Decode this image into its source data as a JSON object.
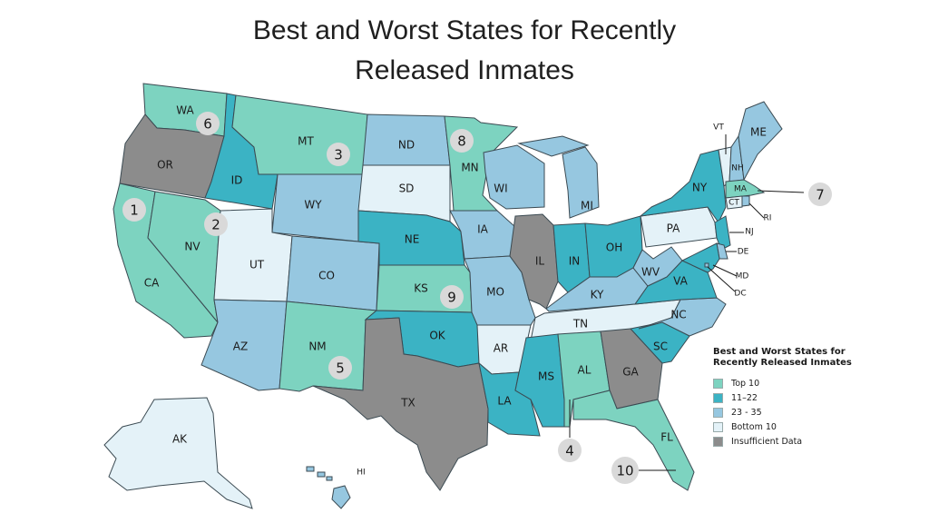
{
  "title": {
    "line1": "Best and Worst States for Recently",
    "line2": "Released Inmates"
  },
  "legend": {
    "title_line1": "Best and Worst States for",
    "title_line2": "Recently Released Inmates",
    "items": [
      {
        "label": "Top 10",
        "color": "#7dd3c0"
      },
      {
        "label": "11–22",
        "color": "#3bb3c4"
      },
      {
        "label": "23 - 35",
        "color": "#96c7e0"
      },
      {
        "label": "Bottom 10",
        "color": "#e4f2f8"
      },
      {
        "label": "Insufficient Data",
        "color": "#8c8c8c"
      }
    ]
  },
  "categories": {
    "top10": "#7dd3c0",
    "mid1": "#3bb3c4",
    "mid2": "#96c7e0",
    "bottom10": "#e4f2f8",
    "nodata": "#8c8c8c"
  },
  "states": [
    {
      "code": "WA",
      "category": "top10"
    },
    {
      "code": "OR",
      "category": "nodata"
    },
    {
      "code": "CA",
      "category": "top10"
    },
    {
      "code": "NV",
      "category": "top10"
    },
    {
      "code": "ID",
      "category": "mid1"
    },
    {
      "code": "MT",
      "category": "top10"
    },
    {
      "code": "WY",
      "category": "mid2"
    },
    {
      "code": "UT",
      "category": "bottom10"
    },
    {
      "code": "CO",
      "category": "mid2"
    },
    {
      "code": "AZ",
      "category": "mid2"
    },
    {
      "code": "NM",
      "category": "top10"
    },
    {
      "code": "ND",
      "category": "mid2"
    },
    {
      "code": "SD",
      "category": "bottom10"
    },
    {
      "code": "NE",
      "category": "mid1"
    },
    {
      "code": "KS",
      "category": "top10"
    },
    {
      "code": "OK",
      "category": "mid1"
    },
    {
      "code": "TX",
      "category": "nodata"
    },
    {
      "code": "MN",
      "category": "top10"
    },
    {
      "code": "IA",
      "category": "mid2"
    },
    {
      "code": "MO",
      "category": "mid2"
    },
    {
      "code": "AR",
      "category": "bottom10"
    },
    {
      "code": "LA",
      "category": "mid1"
    },
    {
      "code": "WI",
      "category": "mid2"
    },
    {
      "code": "IL",
      "category": "nodata"
    },
    {
      "code": "MI",
      "category": "mid2"
    },
    {
      "code": "IN",
      "category": "mid1"
    },
    {
      "code": "OH",
      "category": "mid1"
    },
    {
      "code": "KY",
      "category": "mid2"
    },
    {
      "code": "TN",
      "category": "bottom10"
    },
    {
      "code": "MS",
      "category": "mid1"
    },
    {
      "code": "AL",
      "category": "top10"
    },
    {
      "code": "GA",
      "category": "nodata"
    },
    {
      "code": "FL",
      "category": "top10"
    },
    {
      "code": "SC",
      "category": "mid1"
    },
    {
      "code": "NC",
      "category": "mid2"
    },
    {
      "code": "VA",
      "category": "mid1"
    },
    {
      "code": "WV",
      "category": "mid2"
    },
    {
      "code": "PA",
      "category": "bottom10"
    },
    {
      "code": "NY",
      "category": "mid1"
    },
    {
      "code": "NJ",
      "category": "mid1"
    },
    {
      "code": "DE",
      "category": "mid2"
    },
    {
      "code": "MD",
      "category": "mid1"
    },
    {
      "code": "DC",
      "category": "mid2"
    },
    {
      "code": "VT",
      "category": "bottom10"
    },
    {
      "code": "NH",
      "category": "mid2"
    },
    {
      "code": "ME",
      "category": "mid2"
    },
    {
      "code": "MA",
      "category": "top10"
    },
    {
      "code": "CT",
      "category": "bottom10"
    },
    {
      "code": "RI",
      "category": "mid2"
    },
    {
      "code": "AK",
      "category": "bottom10"
    },
    {
      "code": "HI",
      "category": "mid2"
    }
  ],
  "ranks": [
    {
      "rank": "1",
      "state": "CA"
    },
    {
      "rank": "2",
      "state": "NV"
    },
    {
      "rank": "3",
      "state": "MT"
    },
    {
      "rank": "4",
      "state": "AL"
    },
    {
      "rank": "5",
      "state": "NM"
    },
    {
      "rank": "6",
      "state": "WA"
    },
    {
      "rank": "7",
      "state": "MA"
    },
    {
      "rank": "8",
      "state": "MN"
    },
    {
      "rank": "9",
      "state": "KS"
    },
    {
      "rank": "10",
      "state": "FL"
    }
  ]
}
